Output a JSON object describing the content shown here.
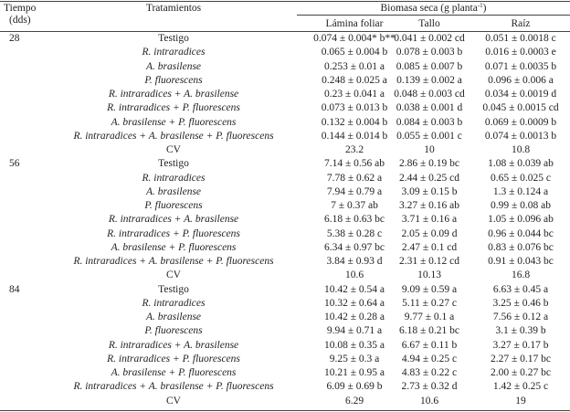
{
  "header": {
    "time": "Tiempo",
    "time_unit": "(dds)",
    "treatments": "Tratamientos",
    "biomass": "Biomasa seca (g planta",
    "biomass_sup": "-1",
    "biomass_close": ")",
    "columns": [
      "Lámina foliar",
      "Tallo",
      "Raíz"
    ]
  },
  "groups": [
    {
      "time": "28",
      "rows": [
        {
          "treatment": "Testigo",
          "values": [
            "0.074 ± 0.004* b**",
            "0.041 ± 0.002 cd",
            "0.051 ± 0.0018 c"
          ]
        },
        {
          "treatment": "R. intraradices",
          "values": [
            "0.065 ± 0.004 b",
            "0.078 ± 0.003 b",
            "0.016 ± 0.0003 e"
          ]
        },
        {
          "treatment": "A. brasilense",
          "values": [
            "0.253 ± 0.01 a",
            "0.085 ± 0.007 b",
            "0.071 ± 0.0035 b"
          ]
        },
        {
          "treatment": "P. fluorescens",
          "values": [
            "0.248 ± 0.025 a",
            "0.139 ± 0.002 a",
            "0.096 ± 0.006 a"
          ]
        },
        {
          "treatment": "R. intraradices + A. brasilense",
          "values": [
            "0.23 ± 0.041 a",
            "0.048 ± 0.003 cd",
            "0.034 ± 0.0019 d"
          ]
        },
        {
          "treatment": "R. intraradices + P. fluorescens",
          "values": [
            "0.073 ± 0.013 b",
            "0.038 ± 0.001 d",
            "0.045 ± 0.0015 cd"
          ]
        },
        {
          "treatment": "A. brasilense + P. fluorescens",
          "values": [
            "0.132 ± 0.004 b",
            "0.084 ± 0.003 b",
            "0.069 ± 0.0009 b"
          ]
        },
        {
          "treatment": "R. intraradices + A. brasilense + P. fluorescens",
          "values": [
            "0.144 ± 0.014 b",
            "0.055 ± 0.001 c",
            "0.074 ± 0.0013 b"
          ]
        },
        {
          "treatment": "CV",
          "values": [
            "23.2",
            "10",
            "10.8"
          ]
        }
      ]
    },
    {
      "time": "56",
      "rows": [
        {
          "treatment": "Testigo",
          "values": [
            "7.14 ± 0.56 ab",
            "2.86 ± 0.19 bc",
            "1.08 ± 0.039 ab"
          ]
        },
        {
          "treatment": "R. intraradices",
          "values": [
            "7.78 ± 0.62 a",
            "2.44 ± 0.25 cd",
            "0.65 ± 0.025 c"
          ]
        },
        {
          "treatment": "A. brasilense",
          "values": [
            "7.94 ± 0.79 a",
            "3.09 ± 0.15 b",
            "1.3 ± 0.124 a"
          ]
        },
        {
          "treatment": "P. fluorescens",
          "values": [
            "7 ± 0.37 ab",
            "3.27 ± 0.16 ab",
            "0.99 ± 0.08 ab"
          ]
        },
        {
          "treatment": "R. intraradices + A. brasilense",
          "values": [
            "6.18 ± 0.63 bc",
            "3.71 ± 0.16 a",
            "1.05 ± 0.096 ab"
          ]
        },
        {
          "treatment": "R. intraradices + P. fluorescens",
          "values": [
            "5.38 ± 0.28 c",
            "2.05 ± 0.09 d",
            "0.96 ± 0.044 bc"
          ]
        },
        {
          "treatment": "A. brasilense + P. fluorescens",
          "values": [
            "6.34 ± 0.97 bc",
            "2.47 ± 0.1 cd",
            "0.83 ± 0.076 bc"
          ]
        },
        {
          "treatment": "R. intraradices + A. brasilense + P. fluorescens",
          "values": [
            "3.84 ± 0.93 d",
            "2.31 ± 0.12 cd",
            "0.91 ± 0.043 bc"
          ]
        },
        {
          "treatment": "CV",
          "values": [
            "10.6",
            "10.13",
            "16.8"
          ]
        }
      ]
    },
    {
      "time": "84",
      "rows": [
        {
          "treatment": "Testigo",
          "values": [
            "10.42 ± 0.54 a",
            "9.09 ± 0.59 a",
            "6.63 ± 0.45 a"
          ]
        },
        {
          "treatment": "R. intraradices",
          "values": [
            "10.32 ± 0.64 a",
            "5.11 ± 0.27 c",
            "3.25 ± 0.46 b"
          ]
        },
        {
          "treatment": "A. brasilense",
          "values": [
            "10.42 ± 0.28 a",
            "9.77 ± 0.1 a",
            "7.56 ± 0.12 a"
          ]
        },
        {
          "treatment": "P. fluorescens",
          "values": [
            "9.94 ± 0.71 a",
            "6.18 ± 0.21 bc",
            "3.1 ± 0.39 b"
          ]
        },
        {
          "treatment": "R. intraradices + A. brasilense",
          "values": [
            "10.08 ± 0.35 a",
            "6.67 ± 0.11 b",
            "3.27 ± 0.17 b"
          ]
        },
        {
          "treatment": "R. intraradices + P. fluorescens",
          "values": [
            "9.25 ± 0.3 a",
            "4.94 ± 0.25 c",
            "2.27 ± 0.17 bc"
          ]
        },
        {
          "treatment": "A. brasilense + P. fluorescens",
          "values": [
            "10.21 ± 0.95 a",
            "4.83 ± 0.22 c",
            "2.00 ± 0.27 bc"
          ]
        },
        {
          "treatment": "R. intraradices + A. brasilense + P. fluorescens",
          "values": [
            "6.09 ± 0.69 b",
            "2.73 ± 0.32 d",
            "1.42 ± 0.25 c"
          ]
        },
        {
          "treatment": "CV",
          "values": [
            "6.29",
            "10.6",
            "19"
          ]
        }
      ]
    }
  ]
}
